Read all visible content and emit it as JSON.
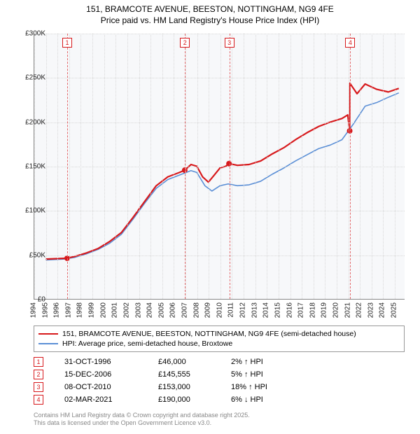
{
  "title_line1": "151, BRAMCOTE AVENUE, BEESTON, NOTTINGHAM, NG9 4FE",
  "title_line2": "Price paid vs. HM Land Registry's House Price Index (HPI)",
  "chart": {
    "type": "line",
    "background_color": "#f7f8fa",
    "grid_color": "#d8d8d8",
    "axis_color": "#888888",
    "x_years": [
      1994,
      1995,
      1996,
      1997,
      1998,
      1999,
      2000,
      2001,
      2002,
      2003,
      2004,
      2005,
      2006,
      2007,
      2008,
      2009,
      2010,
      2011,
      2012,
      2013,
      2014,
      2015,
      2016,
      2017,
      2018,
      2019,
      2020,
      2021,
      2022,
      2023,
      2024,
      2025
    ],
    "x_min": 1994,
    "x_max": 2025.9,
    "y_min": 0,
    "y_max": 300000,
    "y_tick_step": 50000,
    "y_tick_labels": [
      "£0",
      "£50K",
      "£100K",
      "£150K",
      "£200K",
      "£250K",
      "£300K"
    ],
    "x_label_fontsize": 10,
    "y_label_fontsize": 10,
    "series": [
      {
        "name": "price_paid",
        "color": "#d7191c",
        "width": 2.2,
        "points": [
          [
            1995.0,
            45000
          ],
          [
            1996.83,
            46000
          ],
          [
            1997.5,
            48000
          ],
          [
            1998.5,
            52000
          ],
          [
            1999.5,
            57000
          ],
          [
            2000.5,
            65000
          ],
          [
            2001.5,
            75000
          ],
          [
            2002.5,
            92000
          ],
          [
            2003.5,
            110000
          ],
          [
            2004.5,
            128000
          ],
          [
            2005.5,
            138000
          ],
          [
            2006.5,
            143000
          ],
          [
            2006.96,
            145555
          ],
          [
            2007.5,
            152000
          ],
          [
            2008.0,
            150000
          ],
          [
            2008.5,
            138000
          ],
          [
            2009.0,
            132000
          ],
          [
            2009.5,
            140000
          ],
          [
            2010.0,
            148000
          ],
          [
            2010.5,
            150000
          ],
          [
            2010.77,
            153000
          ],
          [
            2011.5,
            151000
          ],
          [
            2012.5,
            152000
          ],
          [
            2013.5,
            156000
          ],
          [
            2014.5,
            164000
          ],
          [
            2015.5,
            171000
          ],
          [
            2016.5,
            180000
          ],
          [
            2017.5,
            188000
          ],
          [
            2018.5,
            195000
          ],
          [
            2019.5,
            200000
          ],
          [
            2020.5,
            204000
          ],
          [
            2021.0,
            208000
          ],
          [
            2021.17,
            190000
          ],
          [
            2021.18,
            244000
          ],
          [
            2021.8,
            232000
          ],
          [
            2022.5,
            243000
          ],
          [
            2023.5,
            237000
          ],
          [
            2024.5,
            234000
          ],
          [
            2025.4,
            238000
          ]
        ]
      },
      {
        "name": "hpi",
        "color": "#5b8fd6",
        "width": 1.6,
        "points": [
          [
            1995.0,
            44000
          ],
          [
            1996.5,
            45000
          ],
          [
            1997.5,
            47000
          ],
          [
            1998.5,
            51000
          ],
          [
            1999.5,
            56000
          ],
          [
            2000.5,
            63000
          ],
          [
            2001.5,
            73000
          ],
          [
            2002.5,
            90000
          ],
          [
            2003.5,
            108000
          ],
          [
            2004.5,
            125000
          ],
          [
            2005.5,
            135000
          ],
          [
            2006.5,
            140000
          ],
          [
            2007.5,
            145000
          ],
          [
            2008.0,
            143000
          ],
          [
            2008.7,
            128000
          ],
          [
            2009.3,
            122000
          ],
          [
            2010.0,
            128000
          ],
          [
            2010.7,
            130000
          ],
          [
            2011.5,
            128000
          ],
          [
            2012.5,
            129000
          ],
          [
            2013.5,
            133000
          ],
          [
            2014.5,
            141000
          ],
          [
            2015.5,
            148000
          ],
          [
            2016.5,
            156000
          ],
          [
            2017.5,
            163000
          ],
          [
            2018.5,
            170000
          ],
          [
            2019.5,
            174000
          ],
          [
            2020.5,
            180000
          ],
          [
            2021.5,
            198000
          ],
          [
            2022.5,
            218000
          ],
          [
            2023.5,
            222000
          ],
          [
            2024.5,
            228000
          ],
          [
            2025.4,
            233000
          ]
        ]
      }
    ],
    "sale_markers": [
      {
        "n": "1",
        "x": 1996.83,
        "y": 46000,
        "color": "#d7191c"
      },
      {
        "n": "2",
        "x": 2006.96,
        "y": 145555,
        "color": "#d7191c"
      },
      {
        "n": "3",
        "x": 2010.77,
        "y": 153000,
        "color": "#d7191c"
      },
      {
        "n": "4",
        "x": 2021.17,
        "y": 190000,
        "color": "#d7191c"
      }
    ],
    "marker_line_color": "#e46a6c"
  },
  "legend": {
    "items": [
      {
        "color": "#d7191c",
        "label": "151, BRAMCOTE AVENUE, BEESTON, NOTTINGHAM, NG9 4FE (semi-detached house)"
      },
      {
        "color": "#5b8fd6",
        "label": "HPI: Average price, semi-detached house, Broxtowe"
      }
    ]
  },
  "events": [
    {
      "n": "1",
      "color": "#d7191c",
      "date": "31-OCT-1996",
      "price": "£46,000",
      "delta": "2% ↑ HPI"
    },
    {
      "n": "2",
      "color": "#d7191c",
      "date": "15-DEC-2006",
      "price": "£145,555",
      "delta": "5% ↑ HPI"
    },
    {
      "n": "3",
      "color": "#d7191c",
      "date": "08-OCT-2010",
      "price": "£153,000",
      "delta": "18% ↑ HPI"
    },
    {
      "n": "4",
      "color": "#d7191c",
      "date": "02-MAR-2021",
      "price": "£190,000",
      "delta": "6% ↓ HPI"
    }
  ],
  "footer_line1": "Contains HM Land Registry data © Crown copyright and database right 2025.",
  "footer_line2": "This data is licensed under the Open Government Licence v3.0."
}
